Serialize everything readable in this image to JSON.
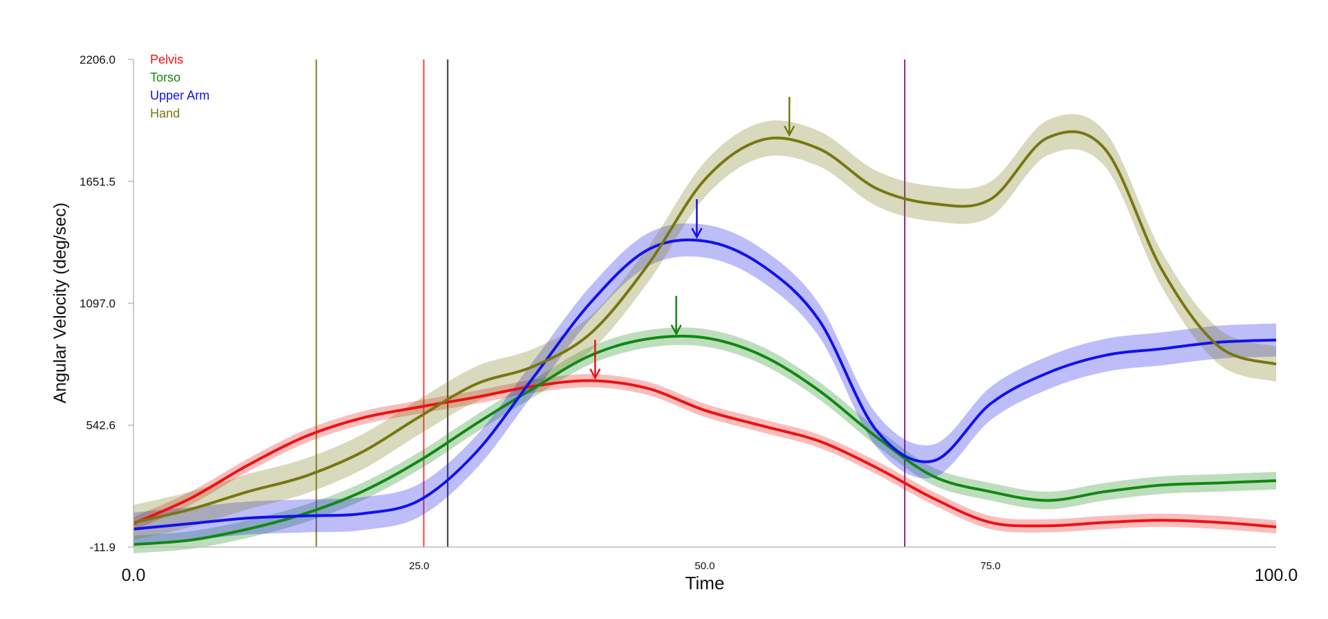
{
  "chart_data": {
    "type": "line",
    "title": "",
    "xlabel": "Time",
    "ylabel": "Angular Velocity (deg/sec)",
    "xlim": [
      0,
      100
    ],
    "ylim": [
      -11.9,
      2206.0
    ],
    "x_ticks": [
      {
        "value": 0,
        "label": "0.0",
        "size": "large"
      },
      {
        "value": 25,
        "label": "25.0",
        "size": "small"
      },
      {
        "value": 50,
        "label": "50.0",
        "size": "small"
      },
      {
        "value": 75,
        "label": "75.0",
        "size": "small"
      },
      {
        "value": 100,
        "label": "100.0",
        "size": "large"
      }
    ],
    "y_ticks": [
      {
        "value": -11.9,
        "label": "-11.9"
      },
      {
        "value": 542.6,
        "label": "542.6"
      },
      {
        "value": 1097.0,
        "label": "1097.0"
      },
      {
        "value": 1651.5,
        "label": "1651.5"
      },
      {
        "value": 2206.0,
        "label": "2206.0"
      }
    ],
    "grid": false,
    "legend_position": "top-left",
    "series": [
      {
        "name": "Pelvis",
        "color": "#ee1111",
        "band": 30,
        "x": [
          0,
          5,
          10,
          15,
          20,
          25,
          30,
          35,
          40,
          45,
          50,
          55,
          60,
          65,
          70,
          75,
          80,
          85,
          90,
          95,
          100
        ],
        "y": [
          95,
          210,
          360,
          490,
          575,
          625,
          670,
          720,
          745,
          710,
          610,
          540,
          470,
          350,
          210,
          100,
          85,
          100,
          110,
          100,
          80
        ],
        "peak": {
          "x": 40.4,
          "y": 745
        }
      },
      {
        "name": "Torso",
        "color": "#118811",
        "band": 40,
        "x": [
          0,
          5,
          10,
          15,
          20,
          25,
          30,
          35,
          40,
          45,
          50,
          55,
          60,
          65,
          70,
          75,
          80,
          85,
          90,
          95,
          100
        ],
        "y": [
          0,
          20,
          70,
          140,
          240,
          380,
          550,
          710,
          860,
          935,
          940,
          860,
          700,
          490,
          310,
          240,
          200,
          240,
          270,
          280,
          290
        ],
        "peak": {
          "x": 47.5,
          "y": 945
        }
      },
      {
        "name": "Upper Arm",
        "color": "#1111ee",
        "band": 75,
        "x": [
          0,
          5,
          10,
          15,
          20,
          25,
          30,
          35,
          40,
          45,
          50,
          55,
          60,
          65,
          70,
          75,
          80,
          85,
          90,
          95,
          100
        ],
        "y": [
          70,
          95,
          120,
          130,
          140,
          200,
          420,
          760,
          1100,
          1340,
          1380,
          1270,
          1020,
          520,
          380,
          640,
          780,
          860,
          890,
          920,
          930
        ],
        "peak": {
          "x": 49.3,
          "y": 1385
        }
      },
      {
        "name": "Hand",
        "color": "#777711",
        "band": 80,
        "x": [
          0,
          5,
          10,
          15,
          20,
          25,
          30,
          35,
          40,
          45,
          50,
          55,
          60,
          65,
          70,
          75,
          80,
          85,
          90,
          95,
          100
        ],
        "y": [
          100,
          160,
          240,
          310,
          420,
          580,
          730,
          810,
          960,
          1270,
          1660,
          1840,
          1800,
          1620,
          1550,
          1570,
          1850,
          1800,
          1250,
          900,
          820
        ],
        "peak": {
          "x": 57.4,
          "y": 1850
        }
      }
    ],
    "vertical_lines": [
      {
        "x": 16.0,
        "color": "#808020"
      },
      {
        "x": 25.4,
        "color": "#ee4444"
      },
      {
        "x": 27.5,
        "color": "#333333"
      },
      {
        "x": 67.5,
        "color": "#882288"
      }
    ]
  }
}
